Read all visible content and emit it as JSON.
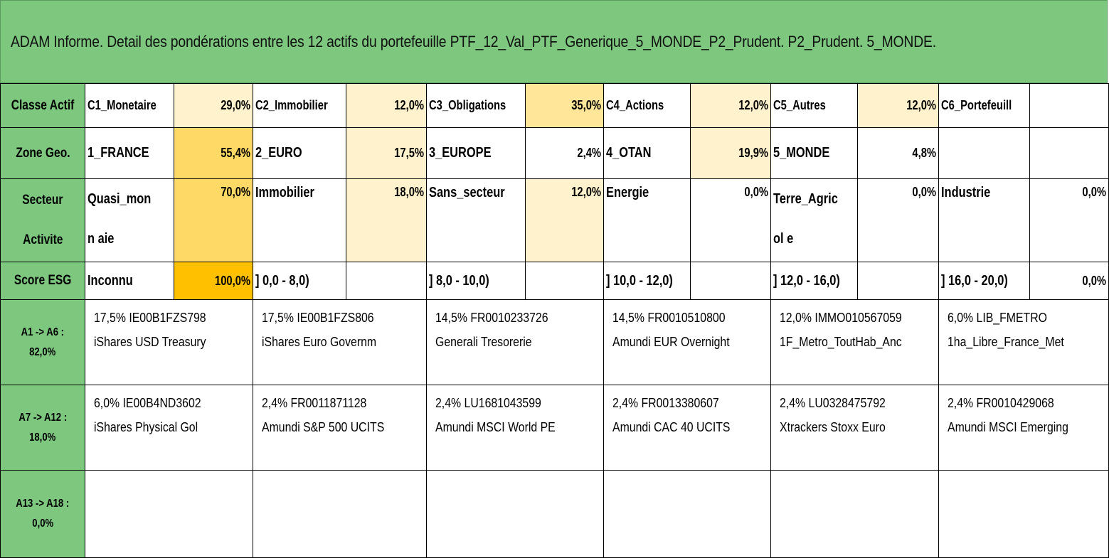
{
  "title": "ADAM Informe. Detail des pondérations entre les 12 actifs du portefeuille PTF_12_Val_PTF_Generique_5_MONDE_P2_Prudent. P2_Prudent. 5_MONDE.",
  "colors": {
    "header_green": "#7dc77f",
    "shade_light": "#fff2cc",
    "shade_mid": "#ffe699",
    "shade_strong": "#ffd966",
    "shade_max": "#ffc000"
  },
  "rows": {
    "classe_actif": {
      "label": "Classe Actif",
      "cells": [
        {
          "name": "C1_Monetaire",
          "value": "29,0%",
          "shade": "shade_light"
        },
        {
          "name": "C2_Immobilier",
          "value": "12,0%",
          "shade": "shade_light"
        },
        {
          "name": "C3_Obligations",
          "value": "35,0%",
          "shade": "shade_mid"
        },
        {
          "name": "C4_Actions",
          "value": "12,0%",
          "shade": "shade_light"
        },
        {
          "name": "C5_Autres",
          "value": "12,0%",
          "shade": "shade_light"
        },
        {
          "name": "C6_Portefeuill",
          "value": "",
          "shade": "none"
        }
      ]
    },
    "zone_geo": {
      "label": "Zone Geo.",
      "cells": [
        {
          "name": "1_FRANCE",
          "value": "55,4%",
          "shade": "shade_strong"
        },
        {
          "name": "2_EURO",
          "value": "17,5%",
          "shade": "shade_light"
        },
        {
          "name": "3_EUROPE",
          "value": "2,4%",
          "shade": "none"
        },
        {
          "name": "4_OTAN",
          "value": "19,9%",
          "shade": "shade_light"
        },
        {
          "name": "5_MONDE",
          "value": "4,8%",
          "shade": "none"
        },
        {
          "name": "",
          "value": "",
          "shade": "none"
        }
      ]
    },
    "secteur": {
      "label_line1": "Secteur",
      "label_line2": "Activite",
      "cells": [
        {
          "name": "Quasi_monn aie",
          "value": "70,0%",
          "shade": "shade_strong"
        },
        {
          "name": "Immobilier",
          "value": "18,0%",
          "shade": "shade_light"
        },
        {
          "name": "Sans_secteur",
          "value": "12,0%",
          "shade": "shade_light"
        },
        {
          "name": "Energie",
          "value": "0,0%",
          "shade": "none"
        },
        {
          "name": "Terre_Agricol e",
          "value": "0,0%",
          "shade": "none"
        },
        {
          "name": "Industrie",
          "value": "0,0%",
          "shade": "none"
        }
      ]
    },
    "score_esg": {
      "label": "Score ESG",
      "cells": [
        {
          "name": "Inconnu",
          "value": "100,0%",
          "shade": "shade_max"
        },
        {
          "name": "] 0,0 - 8,0)",
          "value": "",
          "shade": "none"
        },
        {
          "name": "] 8,0 - 10,0)",
          "value": "",
          "shade": "none"
        },
        {
          "name": "] 10,0 - 12,0)",
          "value": "",
          "shade": "none"
        },
        {
          "name": "] 12,0 - 16,0)",
          "value": "",
          "shade": "none"
        },
        {
          "name": "] 16,0 - 20,0)",
          "value": "0,0%",
          "shade": "none"
        }
      ]
    }
  },
  "asset_groups": [
    {
      "label_line1": "A1 -> A6 :",
      "label_line2": "82,0%",
      "assets": [
        {
          "line1": "17,5% IE00B1FZS798",
          "line2": "iShares USD Treasury"
        },
        {
          "line1": "17,5% IE00B1FZS806",
          "line2": "iShares Euro Governm"
        },
        {
          "line1": "14,5% FR0010233726",
          "line2": "Generali Tresorerie"
        },
        {
          "line1": "14,5% FR0010510800",
          "line2": "Amundi EUR Overnight"
        },
        {
          "line1": "12,0% IMMO010567059",
          "line2": "1F_Metro_ToutHab_Anc"
        },
        {
          "line1": "6,0% LIB_FMETRO",
          "line2": "1ha_Libre_France_Met"
        }
      ]
    },
    {
      "label_line1": "A7 -> A12 :",
      "label_line2": "18,0%",
      "assets": [
        {
          "line1": "6,0% IE00B4ND3602",
          "line2": "iShares Physical Gol"
        },
        {
          "line1": "2,4% FR0011871128",
          "line2": "Amundi S&P 500 UCITS"
        },
        {
          "line1": "2,4% LU1681043599",
          "line2": "Amundi MSCI World PE"
        },
        {
          "line1": "2,4% FR0013380607",
          "line2": "Amundi CAC 40 UCITS"
        },
        {
          "line1": "2,4% LU0328475792",
          "line2": "Xtrackers Stoxx Euro"
        },
        {
          "line1": "2,4% FR0010429068",
          "line2": "Amundi MSCI Emerging"
        }
      ]
    },
    {
      "label_line1": "A13 -> A18 :",
      "label_line2": "0,0%",
      "assets": [
        {
          "line1": "",
          "line2": ""
        },
        {
          "line1": "",
          "line2": ""
        },
        {
          "line1": "",
          "line2": ""
        },
        {
          "line1": "",
          "line2": ""
        },
        {
          "line1": "",
          "line2": ""
        },
        {
          "line1": "",
          "line2": ""
        }
      ]
    }
  ]
}
